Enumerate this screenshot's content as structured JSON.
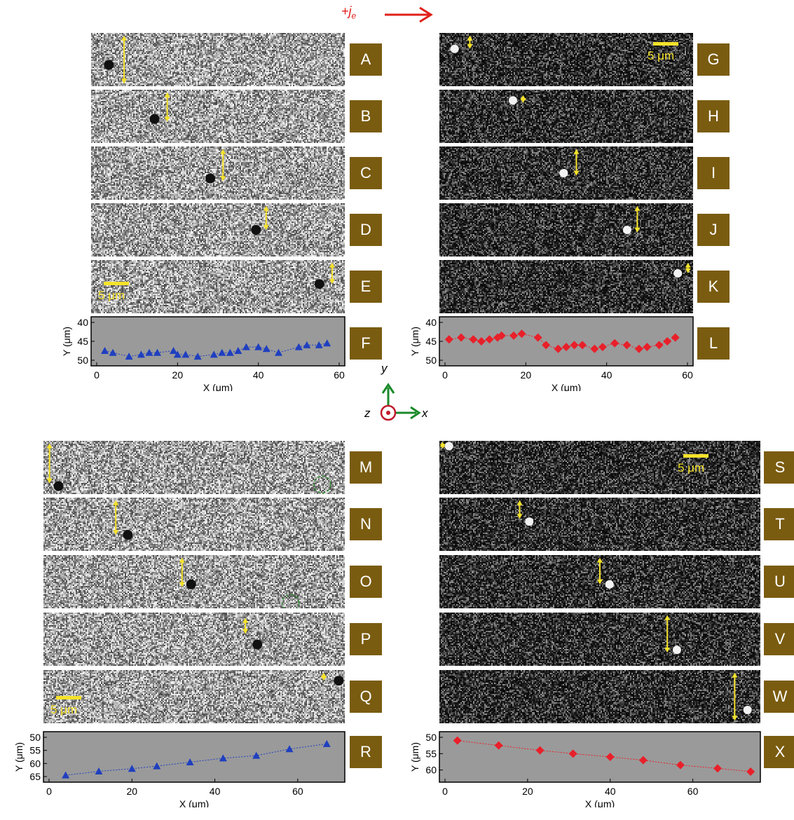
{
  "current_label": {
    "main": "+j",
    "sub": "e"
  },
  "scale_bar_label": "5 μm",
  "axes_glyph": {
    "x": "x",
    "y": "y",
    "z": "z"
  },
  "panel_labels": {
    "top_left": [
      "A",
      "B",
      "C",
      "D",
      "E"
    ],
    "top_right": [
      "G",
      "H",
      "I",
      "J",
      "K"
    ],
    "bottom_left": [
      "M",
      "N",
      "O",
      "P",
      "Q"
    ],
    "bottom_right": [
      "S",
      "T",
      "U",
      "V",
      "W"
    ],
    "plots": [
      "F",
      "L",
      "R",
      "X"
    ]
  },
  "colors": {
    "label_bg": "#7a5c10",
    "arrow": "#f5e22a",
    "current_arrow": "#e0201b",
    "blue": "#1f3fbf",
    "red": "#e8202a",
    "plot_bg": "#9a9a9a",
    "axis_arrow": "#1a8a2a"
  },
  "chart_data": [
    {
      "id": "F",
      "type": "scatter",
      "marker": "triangle",
      "color": "#1f3fbf",
      "xlabel": "X (μm)",
      "ylabel": "Y (μm)",
      "xlim": [
        0,
        60
      ],
      "ylim": [
        40,
        50
      ],
      "y_inverted": true,
      "xticks": [
        "0",
        "20",
        "40",
        "60"
      ],
      "yticks": [
        "40",
        "45",
        "50"
      ],
      "x": [
        2,
        4,
        8,
        11,
        13,
        15,
        19,
        20,
        22,
        25,
        29,
        31,
        33,
        35,
        37,
        40,
        42,
        45,
        50,
        52,
        55,
        57
      ],
      "y": [
        47.5,
        48,
        49,
        48.5,
        48,
        48,
        47.5,
        48.5,
        48.5,
        49,
        48.5,
        48,
        48,
        47.5,
        46.5,
        46.5,
        47,
        48,
        46.5,
        46,
        46,
        45.5
      ]
    },
    {
      "id": "L",
      "type": "scatter",
      "marker": "diamond",
      "color": "#e8202a",
      "xlabel": "X (μm)",
      "ylabel": "Y (μm)",
      "xlim": [
        0,
        60
      ],
      "ylim": [
        40,
        50
      ],
      "y_inverted": true,
      "xticks": [
        "0",
        "20",
        "40",
        "60"
      ],
      "yticks": [
        "40",
        "45",
        "50"
      ],
      "x": [
        1,
        4,
        7,
        9,
        11,
        13,
        14,
        17,
        19,
        23,
        25,
        28,
        30,
        32,
        34,
        37,
        39,
        42,
        45,
        48,
        50,
        53,
        55,
        57
      ],
      "y": [
        44.5,
        44,
        44.5,
        45,
        44.5,
        44,
        43.5,
        43.5,
        43,
        44,
        46,
        47,
        46.5,
        46,
        46,
        47,
        46.5,
        45.5,
        46,
        47,
        46.5,
        46,
        45,
        44
      ]
    },
    {
      "id": "R",
      "type": "line",
      "marker": "triangle",
      "color": "#1f3fbf",
      "xlabel": "X (μm)",
      "ylabel": "Y (μm)",
      "xlim": [
        0,
        70
      ],
      "ylim": [
        50,
        65
      ],
      "y_inverted": true,
      "xticks": [
        "0",
        "20",
        "40",
        "60"
      ],
      "yticks": [
        "50",
        "55",
        "60",
        "65"
      ],
      "x": [
        4,
        12,
        20,
        26,
        34,
        42,
        50,
        58,
        67
      ],
      "y": [
        64.5,
        63,
        62,
        61,
        59.5,
        58,
        57,
        54.5,
        52.5
      ]
    },
    {
      "id": "X",
      "type": "line",
      "marker": "diamond",
      "color": "#e8202a",
      "xlabel": "X (μm)",
      "ylabel": "Y (μm)",
      "xlim": [
        0,
        75
      ],
      "ylim": [
        50,
        62
      ],
      "y_inverted": true,
      "xticks": [
        "0",
        "20",
        "40",
        "60"
      ],
      "yticks": [
        "50",
        "55",
        "60"
      ],
      "x": [
        3,
        13,
        23,
        31,
        40,
        48,
        57,
        66,
        74
      ],
      "y": [
        51,
        52.5,
        54,
        55,
        56,
        57,
        58.5,
        59.5,
        60.5
      ]
    }
  ]
}
